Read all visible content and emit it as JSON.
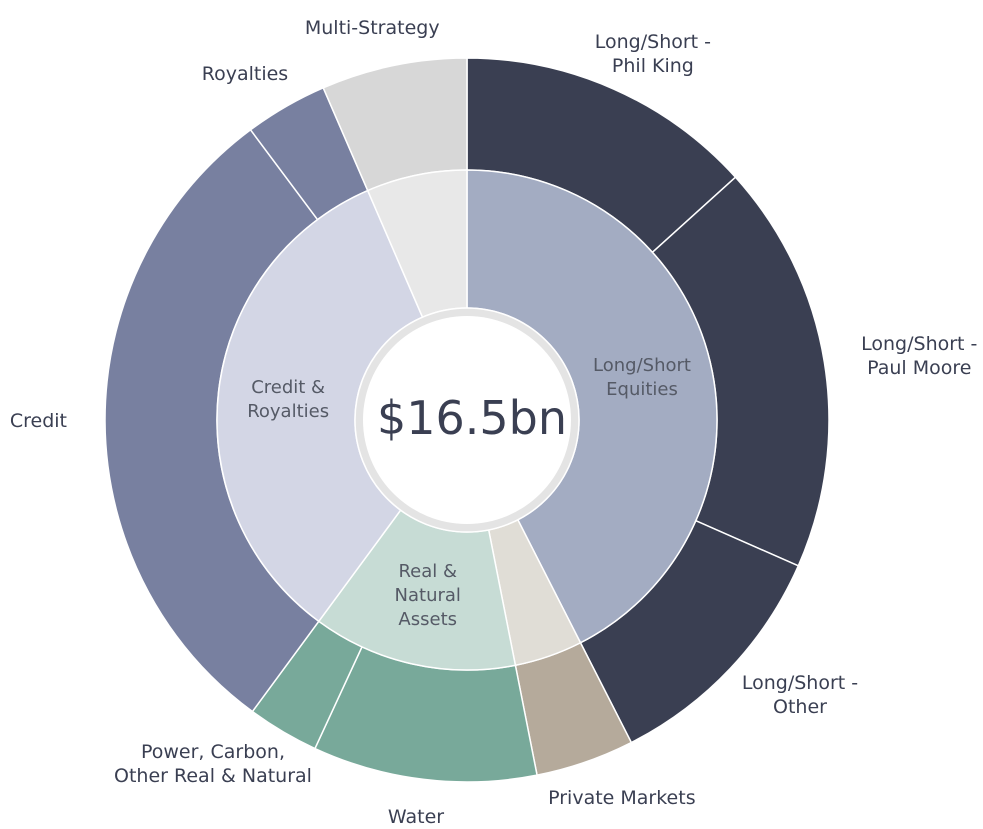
{
  "chart_data": {
    "type": "sunburst",
    "center_label": "$16.5bn",
    "inner": {
      "categories": [
        "Long/Short\nEquities",
        null,
        "Real &\nNatural\nAssets",
        "Credit &\nRoyalties",
        null
      ],
      "values": [
        42.5,
        4.4,
        13.2,
        33.4,
        6.5
      ],
      "colors": [
        "#a3acc2",
        "#e0ddd6",
        "#c7dcd5",
        "#d3d6e5",
        "#e8e8e8"
      ]
    },
    "outer": {
      "categories": [
        "Long/Short -\nPhil King",
        "Long/Short -\nPaul Moore",
        "Long/Short -\nOther",
        "Private Markets",
        "Water",
        "Power, Carbon,\nOther Real & Natural",
        "Credit",
        "Royalties",
        "Multi-Strategy"
      ],
      "values": [
        13.3,
        18.3,
        10.9,
        4.4,
        10,
        3.2,
        29.7,
        3.7,
        6.5
      ],
      "colors": [
        "#3a3f52",
        "#3a3f52",
        "#3a3f52",
        "#b5aa9b",
        "#78a99a",
        "#78a99a",
        "#7880a0",
        "#7880a0",
        "#d7d7d7"
      ]
    }
  }
}
